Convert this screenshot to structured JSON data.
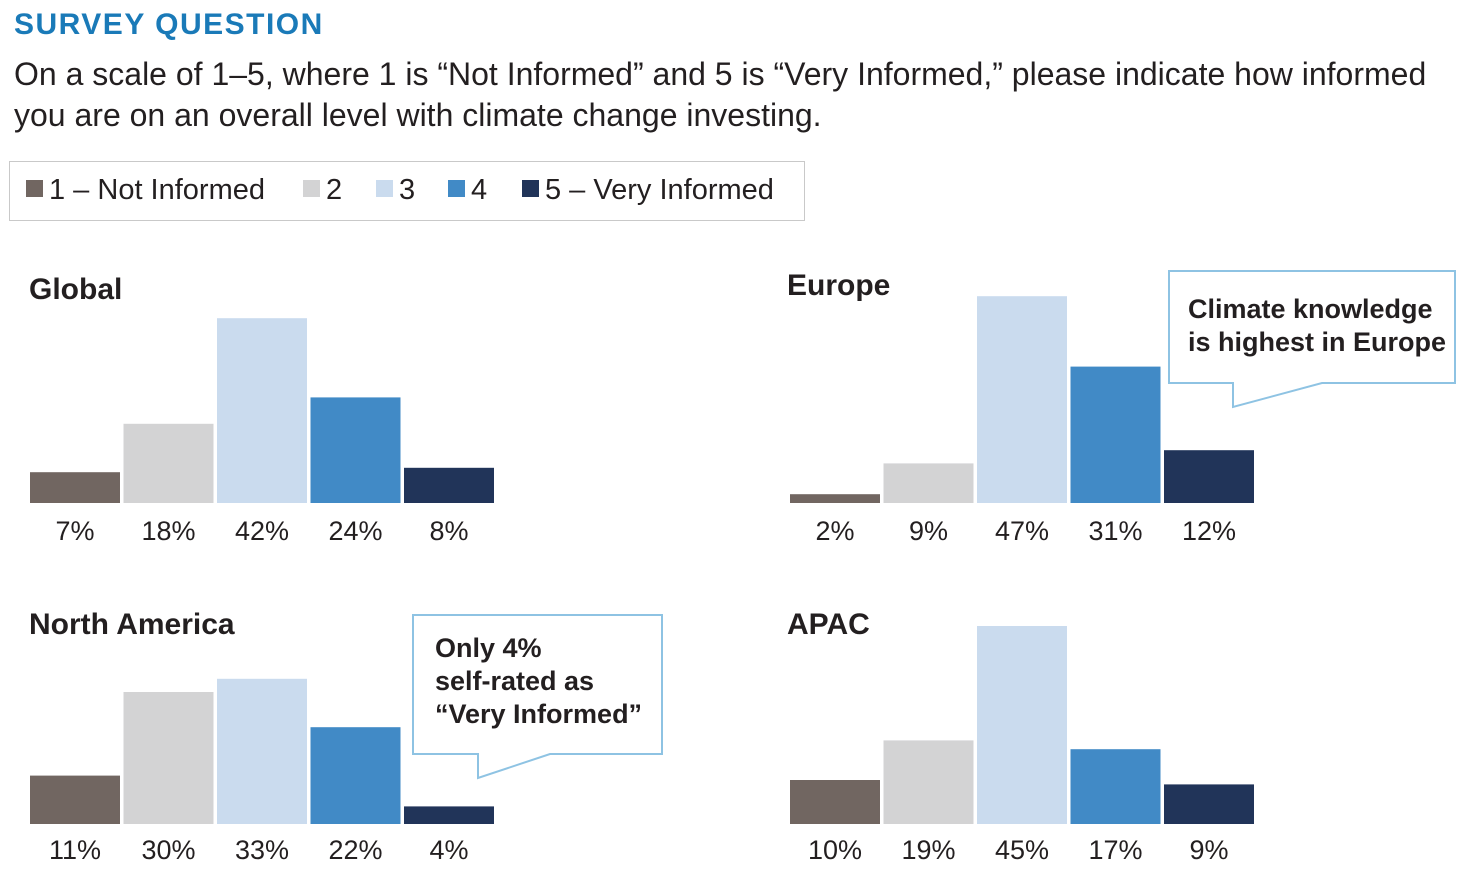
{
  "header": {
    "kicker": "SURVEY QUESTION",
    "question": "On a scale of 1–5, where 1 is “Not Informed” and 5 is “Very Informed,” please indicate how informed you are on an overall level with climate change investing."
  },
  "legend": [
    {
      "label": "1 – Not Informed",
      "color": "#716661"
    },
    {
      "label": "2",
      "color": "#d3d3d4"
    },
    {
      "label": "3",
      "color": "#cadbee"
    },
    {
      "label": "4",
      "color": "#418ac6"
    },
    {
      "label": "5 – Very Informed",
      "color": "#213459"
    }
  ],
  "chart_data": [
    {
      "type": "bar",
      "title": "Global",
      "categories": [
        "1",
        "2",
        "3",
        "4",
        "5"
      ],
      "values": [
        7,
        18,
        42,
        24,
        8
      ],
      "labels": [
        "7%",
        "18%",
        "42%",
        "24%",
        "8%"
      ]
    },
    {
      "type": "bar",
      "title": "Europe",
      "categories": [
        "1",
        "2",
        "3",
        "4",
        "5"
      ],
      "values": [
        2,
        9,
        47,
        31,
        12
      ],
      "labels": [
        "2%",
        "9%",
        "47%",
        "31%",
        "12%"
      ],
      "annotation": "Climate knowledge is highest in Europe"
    },
    {
      "type": "bar",
      "title": "North America",
      "categories": [
        "1",
        "2",
        "3",
        "4",
        "5"
      ],
      "values": [
        11,
        30,
        33,
        22,
        4
      ],
      "labels": [
        "11%",
        "30%",
        "33%",
        "22%",
        "4%"
      ],
      "annotation": "Only 4% self-rated as “Very Informed”"
    },
    {
      "type": "bar",
      "title": "APAC",
      "categories": [
        "1",
        "2",
        "3",
        "4",
        "5"
      ],
      "values": [
        10,
        19,
        45,
        17,
        9
      ],
      "labels": [
        "10%",
        "19%",
        "45%",
        "17%",
        "9%"
      ]
    }
  ],
  "callouts": {
    "europe": {
      "line1": "Climate knowledge",
      "line2": "is highest in Europe"
    },
    "north_america": {
      "line1": "Only 4%",
      "line2": "self-rated as",
      "line3": "“Very Informed”"
    }
  },
  "colors": {
    "kicker": "#1a7ab8",
    "callout_border": "#8ec3e3"
  }
}
